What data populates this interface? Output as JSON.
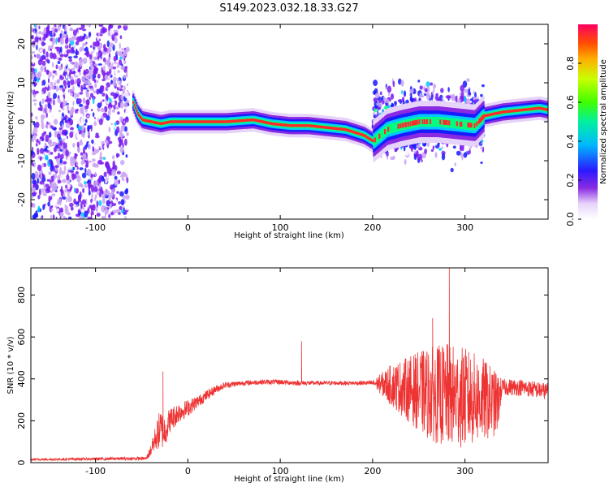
{
  "title": "S149.2023.032.18.33.G27",
  "colors": {
    "snr_line": "#ee3333",
    "colormap": [
      "#ffffff",
      "#c9a3f5",
      "#7a1cf0",
      "#1a1aff",
      "#00c8ff",
      "#00ff80",
      "#90ff00",
      "#ffd000",
      "#ff7000",
      "#ff0000"
    ]
  },
  "chart_data": [
    {
      "type": "heatmap",
      "title": "",
      "xlabel": "Height of straight line (km)",
      "ylabel": "Frequency (Hz)",
      "xlim": [
        -170,
        390
      ],
      "ylim": [
        -25,
        25
      ],
      "xticks": [
        -100,
        0,
        100,
        200,
        300
      ],
      "yticks": [
        20,
        10,
        0,
        -10,
        -20
      ],
      "grid": false,
      "colorbar": {
        "label": "Normalized spectral amplitude",
        "range": [
          0,
          1
        ],
        "ticks": [
          0.0,
          0.2,
          0.4,
          0.6,
          0.8
        ]
      },
      "ridge": {
        "x": [
          -60,
          -55,
          -50,
          -40,
          -30,
          -20,
          0,
          40,
          70,
          90,
          110,
          130,
          150,
          170,
          190,
          200,
          215,
          230,
          250,
          270,
          290,
          310,
          320,
          340,
          360,
          380,
          390
        ],
        "y": [
          5,
          2,
          0.5,
          0,
          -0.5,
          0,
          0,
          0,
          0.5,
          -0.5,
          -1,
          -1,
          -1.5,
          -2,
          -3.5,
          -5,
          -2,
          -1,
          0,
          0,
          -0.5,
          -1,
          1.5,
          2.5,
          3,
          3.5,
          3
        ]
      },
      "noise_regions": [
        {
          "x_range": [
            -170,
            -65
          ],
          "y_range": [
            -25,
            25
          ],
          "level": 0.3
        },
        {
          "x_range": [
            200,
            320
          ],
          "y_range": [
            -18,
            12
          ],
          "level": 0.35
        }
      ]
    },
    {
      "type": "line",
      "title": "",
      "xlabel": "Height of straight line (km)",
      "ylabel": "SNR (10 * v/v)",
      "xlim": [
        -170,
        390
      ],
      "ylim": [
        0,
        930
      ],
      "xticks": [
        -100,
        0,
        100,
        200,
        300
      ],
      "yticks": [
        0,
        200,
        400,
        600,
        800
      ],
      "grid": false,
      "envelope": {
        "x": [
          -170,
          -45,
          -40,
          -35,
          -30,
          -25,
          -20,
          -10,
          0,
          10,
          20,
          30,
          40,
          60,
          80,
          100,
          120,
          140,
          160,
          180,
          200,
          220,
          240,
          260,
          280,
          300,
          320,
          335,
          340,
          360,
          390
        ],
        "mean": [
          15,
          20,
          60,
          120,
          160,
          150,
          200,
          240,
          260,
          290,
          320,
          350,
          370,
          380,
          385,
          385,
          380,
          380,
          380,
          380,
          380,
          370,
          350,
          330,
          320,
          310,
          300,
          280,
          360,
          360,
          340
        ],
        "spread": [
          5,
          8,
          30,
          60,
          100,
          80,
          60,
          50,
          40,
          30,
          25,
          20,
          15,
          12,
          12,
          12,
          12,
          10,
          10,
          10,
          12,
          100,
          160,
          220,
          250,
          240,
          200,
          150,
          40,
          40,
          40
        ]
      },
      "peaks": [
        {
          "x": -27,
          "y": 435
        },
        {
          "x": 123,
          "y": 580
        },
        {
          "x": 283,
          "y": 930
        },
        {
          "x": 265,
          "y": 690
        }
      ]
    }
  ],
  "text": {
    "xlabel_top": "Height of straight line (km)",
    "xlabel_bottom": "Height of straight line (km)",
    "ylabel_top": "Frequency (Hz)",
    "ylabel_bottom": "SNR (10 * v/v)",
    "colorbar_label": "Normalized spectral amplitude",
    "x_tick_labels": [
      "-100",
      "0",
      "100",
      "200",
      "300"
    ],
    "y_tick_labels_top": [
      "20",
      "10",
      "0",
      "-10",
      "-20"
    ],
    "y_tick_labels_bottom": [
      "0",
      "200",
      "400",
      "600",
      "800"
    ],
    "cbar_tick_labels": [
      "0.0",
      "0.2",
      "0.4",
      "0.6",
      "0.8"
    ]
  }
}
